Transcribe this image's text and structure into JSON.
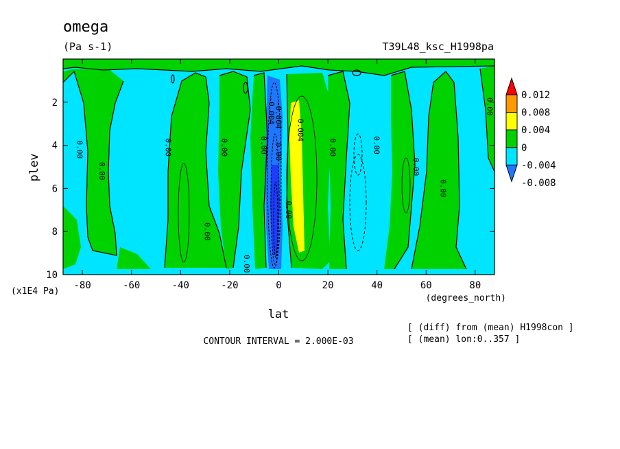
{
  "chart_data": {
    "type": "contour",
    "title": "omega",
    "units": "(Pa s-1)",
    "run_label": "T39L48_ksc_H1998pa",
    "xlabel": "lat",
    "xunits": "(degrees_north)",
    "ylabel": "plev",
    "yunits": "(x1E4 Pa)",
    "xlim": [
      -87.86,
      87.86
    ],
    "ylim": [
      10,
      0
    ],
    "xticks": [
      -80,
      -60,
      -40,
      -20,
      0,
      20,
      40,
      60,
      80
    ],
    "xtick_labels": [
      "-80",
      "-60",
      "-40",
      "-20",
      "0",
      "20",
      "40",
      "60",
      "80"
    ],
    "yticks": [
      2,
      4,
      6,
      8,
      10
    ],
    "ytick_labels": [
      "2",
      "4",
      "6",
      "8",
      "10"
    ],
    "contour_interval_text": "CONTOUR INTERVAL = 2.000E-03",
    "notes": [
      "[ (diff) from (mean) H1998con ]",
      "[ (mean) lon:0..357 ]"
    ],
    "colorbar": {
      "levels": [
        -0.008,
        -0.004,
        0,
        0.004,
        0.008,
        0.012
      ],
      "labels": [
        "-0.008",
        "-0.004",
        "0",
        "0.004",
        "0.008",
        "0.012"
      ],
      "colors": [
        "#1e78ff",
        "#00e5ff",
        "#00d200",
        "#ffff00",
        "#ff9900",
        "#ff0000"
      ],
      "under_color": "#1e3cff"
    },
    "contour_labels": [
      {
        "text": "0.00",
        "lat": -81,
        "plev": 4.2
      },
      {
        "text": "0.00",
        "lat": -72,
        "plev": 5.2
      },
      {
        "text": "0.00",
        "lat": -45,
        "plev": 4.1
      },
      {
        "text": "0.00",
        "lat": -29,
        "plev": 8.0
      },
      {
        "text": "0.00",
        "lat": -22,
        "plev": 4.1
      },
      {
        "text": "0.00",
        "lat": -13,
        "plev": 9.5
      },
      {
        "text": "0.00",
        "lat": -6,
        "plev": 4.0
      },
      {
        "text": "-0.004",
        "lat": -3,
        "plev": 2.4
      },
      {
        "text": "-0.004",
        "lat": 0,
        "plev": 2.6
      },
      {
        "text": "0.00",
        "lat": 0,
        "plev": 4.3
      },
      {
        "text": "0.00",
        "lat": 4,
        "plev": 7.0
      },
      {
        "text": "0.004",
        "lat": 9,
        "plev": 3.3
      },
      {
        "text": "0.00",
        "lat": 22,
        "plev": 4.1
      },
      {
        "text": "0.00",
        "lat": 40,
        "plev": 4.0
      },
      {
        "text": "0.00",
        "lat": 56,
        "plev": 5.0
      },
      {
        "text": "0.00",
        "lat": 67,
        "plev": 6.0
      },
      {
        "text": "0.00",
        "lat": 86,
        "plev": 2.2
      }
    ]
  }
}
